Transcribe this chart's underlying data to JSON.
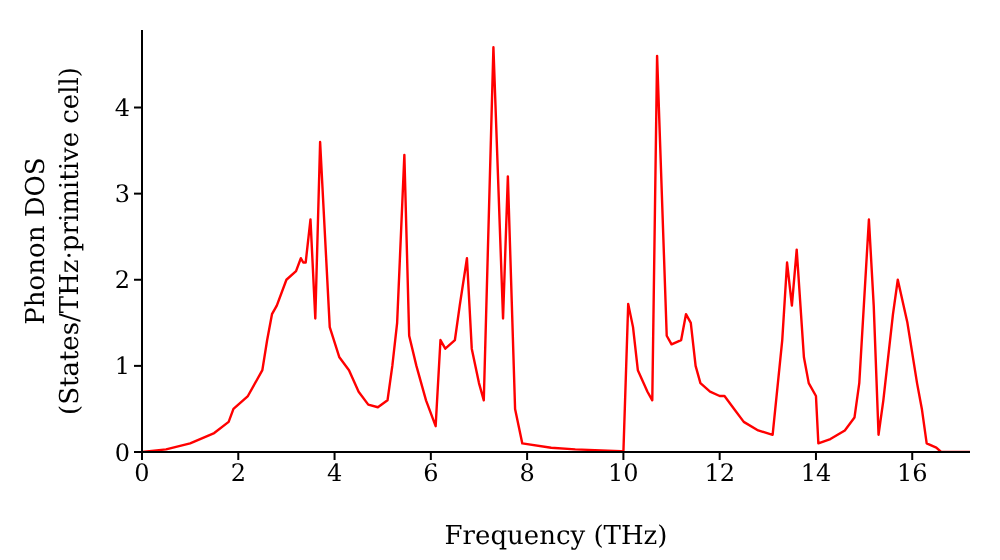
{
  "chart_data": {
    "type": "line",
    "xlabel": "Frequency (THz)",
    "ylabel": "Phonon DOS\n(States/THz·primitive cell)",
    "xlim": [
      0,
      17.2
    ],
    "xticks": [
      0,
      2,
      4,
      6,
      8,
      10,
      12,
      14,
      16
    ],
    "ylim": [
      0,
      4.9
    ],
    "yticks": [
      0,
      1,
      2,
      3,
      4
    ],
    "grid": false,
    "legend": false,
    "marker": "none",
    "line_style": "solid",
    "series": [
      {
        "color": "#ff0000",
        "x": [
          0,
          0.5,
          1,
          1.5,
          1.8,
          1.9,
          2.2,
          2.5,
          2.6,
          2.7,
          2.8,
          3.0,
          3.2,
          3.3,
          3.35,
          3.4,
          3.5,
          3.6,
          3.7,
          3.9,
          4.1,
          4.3,
          4.5,
          4.7,
          4.9,
          5.1,
          5.2,
          5.3,
          5.45,
          5.55,
          5.7,
          5.9,
          6.1,
          6.2,
          6.3,
          6.5,
          6.6,
          6.75,
          6.85,
          7.0,
          7.1,
          7.3,
          7.5,
          7.6,
          7.75,
          7.9,
          8.5,
          9,
          9.95,
          10.0,
          10.1,
          10.2,
          10.3,
          10.5,
          10.6,
          10.7,
          10.9,
          11.0,
          11.2,
          11.3,
          11.4,
          11.5,
          11.6,
          11.8,
          12.0,
          12.1,
          12.3,
          12.5,
          12.8,
          13.1,
          13.3,
          13.4,
          13.5,
          13.6,
          13.75,
          13.85,
          14.0,
          14.05,
          14.3,
          14.6,
          14.8,
          14.9,
          15.1,
          15.2,
          15.3,
          15.4,
          15.6,
          15.7,
          15.9,
          16.1,
          16.2,
          16.3,
          16.5,
          16.6,
          17.2
        ],
        "values": [
          0,
          0.03,
          0.1,
          0.22,
          0.35,
          0.5,
          0.65,
          0.95,
          1.3,
          1.6,
          1.7,
          2.0,
          2.1,
          2.25,
          2.2,
          2.2,
          2.7,
          1.55,
          3.6,
          1.45,
          1.1,
          0.95,
          0.7,
          0.55,
          0.52,
          0.6,
          1.0,
          1.5,
          3.45,
          1.35,
          1.0,
          0.6,
          0.3,
          1.3,
          1.2,
          1.3,
          1.7,
          2.25,
          1.2,
          0.8,
          0.6,
          4.7,
          1.55,
          3.2,
          0.5,
          0.1,
          0.05,
          0.03,
          0.01,
          0,
          1.72,
          1.45,
          0.95,
          0.7,
          0.6,
          4.6,
          1.35,
          1.25,
          1.3,
          1.6,
          1.5,
          1.0,
          0.8,
          0.7,
          0.65,
          0.65,
          0.5,
          0.35,
          0.25,
          0.2,
          1.3,
          2.2,
          1.7,
          2.35,
          1.1,
          0.8,
          0.65,
          0.1,
          0.15,
          0.25,
          0.4,
          0.8,
          2.7,
          1.7,
          0.2,
          0.6,
          1.6,
          2.0,
          1.5,
          0.8,
          0.5,
          0.1,
          0.05,
          0,
          0
        ]
      }
    ]
  }
}
